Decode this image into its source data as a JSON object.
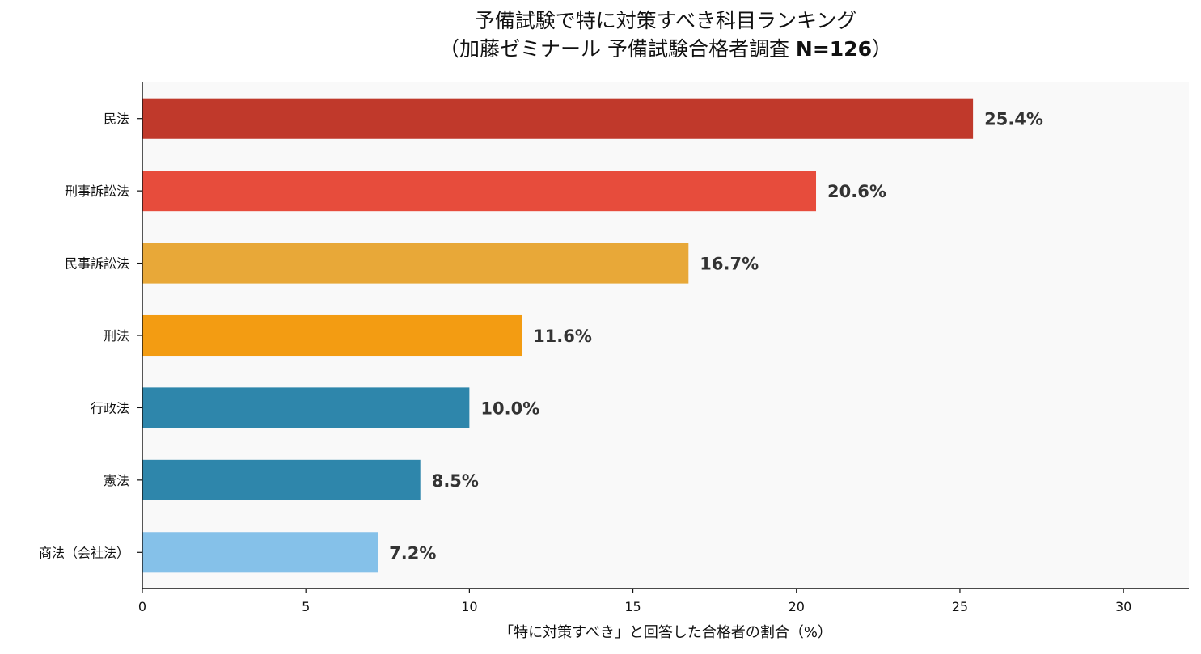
{
  "chart_data": {
    "type": "bar",
    "orientation": "horizontal",
    "title_line1": "予備試験で特に対策すべき科目ランキング",
    "title_line2_prefix": "（加藤ゼミナール 予備試験合格者調査 ",
    "title_line2_bold": "N=126",
    "title_line2_suffix": "）",
    "xlabel": "「特に対策すべき」と回答した合格者の割合（%）",
    "ylabel": "",
    "categories": [
      "民法",
      "刑事訴訟法",
      "民事訴訟法",
      "刑法",
      "行政法",
      "憲法",
      "商法（会社法）"
    ],
    "values": [
      25.4,
      20.6,
      16.7,
      11.6,
      10.0,
      8.5,
      7.2
    ],
    "value_labels": [
      "25.4%",
      "20.6%",
      "16.7%",
      "11.6%",
      "10.0%",
      "8.5%",
      "7.2%"
    ],
    "colors": [
      "#c0392b",
      "#e74c3c",
      "#e8a838",
      "#f39c12",
      "#2e86ab",
      "#2e86ab",
      "#85c1e9"
    ],
    "xlim": [
      0,
      32
    ],
    "xticks": [
      0,
      5,
      10,
      15,
      20,
      25,
      30
    ],
    "grid": false,
    "background": "#f9f9f9"
  }
}
